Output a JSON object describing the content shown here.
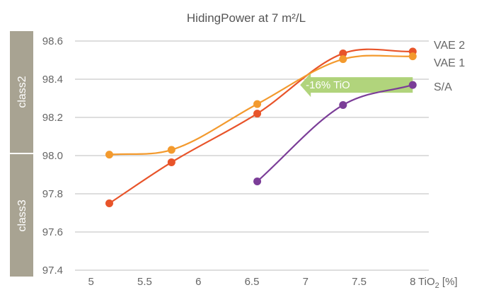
{
  "chart_data": {
    "type": "line",
    "title": "HidingPower at 7 m²/L",
    "x_label_main": "TiO",
    "x_label_sub": "2",
    "x_label_unit": " [%]",
    "xlim": [
      4.85,
      8.15
    ],
    "ylim": [
      97.4,
      98.6
    ],
    "x_ticks": [
      "5",
      "5.5",
      "6",
      "6.5",
      "7",
      "7.5",
      "8"
    ],
    "y_ticks": [
      "97.4",
      "97.6",
      "97.8",
      "98.0",
      "98.2",
      "98.4",
      "98.6"
    ],
    "grid": true,
    "classes": [
      {
        "label": "class2",
        "from": 98.0,
        "to": 98.6
      },
      {
        "label": "class3",
        "from": 97.4,
        "to": 98.0
      }
    ],
    "annotation": {
      "text": "-16% TiO",
      "from_x": 8.0,
      "to_x": 6.95,
      "y": 98.37
    },
    "series": [
      {
        "name": "VAE 2",
        "color": "#e8542a",
        "x": [
          5.17,
          5.75,
          6.55,
          7.35,
          8.0
        ],
        "y": [
          97.75,
          97.965,
          98.22,
          98.535,
          98.545
        ]
      },
      {
        "name": "VAE 1",
        "color": "#f39a2e",
        "x": [
          5.17,
          5.75,
          6.55,
          7.35,
          8.0
        ],
        "y": [
          98.005,
          98.03,
          98.27,
          98.505,
          98.52
        ]
      },
      {
        "name": "S/A",
        "color": "#7b3d98",
        "x": [
          6.55,
          7.35,
          8.0
        ],
        "y": [
          97.865,
          98.265,
          98.37
        ]
      }
    ]
  }
}
